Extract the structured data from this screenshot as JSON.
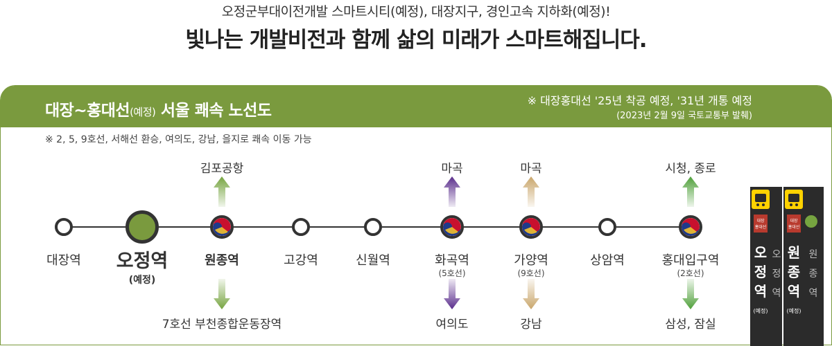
{
  "header": {
    "line1": "오정군부대이전개발 스마트시티(예정), 대장지구, 경인고속 지하화(예정)!",
    "line2": "빛나는 개발비전과 함께 삶의 미래가 스마트해집니다."
  },
  "route_map": {
    "title_main": "대장~홍대선",
    "title_paren": "(예정)",
    "title_rest": " 서울 쾌속 노선도",
    "schedule_note": "※ 대장홍대선 '25년 착공 예정, '31년 개통 예정",
    "source_note": "(2023년 2월 9일 국토교통부 발췌)",
    "transfer_note": "※ 2, 5, 9호선, 서해선 환승, 여의도, 강남, 을지로 쾌속 이동 가능",
    "line_color": "#333333",
    "accent_color": "#7a9a3e",
    "stations": [
      {
        "name": "대장역",
        "sub": "",
        "type": "normal"
      },
      {
        "name": "오정역",
        "sub": "(예정)",
        "type": "highlight"
      },
      {
        "name": "원종역",
        "sub": "",
        "type": "transfer"
      },
      {
        "name": "고강역",
        "sub": "",
        "type": "normal"
      },
      {
        "name": "신월역",
        "sub": "",
        "type": "normal"
      },
      {
        "name": "화곡역",
        "sub": "(5호선)",
        "type": "transfer"
      },
      {
        "name": "가양역",
        "sub": "(9호선)",
        "type": "transfer"
      },
      {
        "name": "상암역",
        "sub": "",
        "type": "normal"
      },
      {
        "name": "홍대입구역",
        "sub": "(2호선)",
        "type": "transfer"
      }
    ],
    "connections": [
      {
        "station": "원종역",
        "up": "김포공항",
        "down": "7호선 부천종합운동장역",
        "color": "#76a440"
      },
      {
        "station": "화곡역",
        "up": "마곡",
        "down": "여의도",
        "color": "#5a2d8c"
      },
      {
        "station": "가양역",
        "up": "마곡",
        "down": "강남",
        "color": "#c9a66b"
      },
      {
        "station": "홍대입구역",
        "up": "시청, 종로",
        "down": "삼성, 잠실",
        "color": "#4fa03a"
      }
    ]
  },
  "signs": [
    {
      "station": "오정역",
      "line_badge": "대장\n홍대선",
      "sub": "(예정)",
      "side": "오정역"
    },
    {
      "station": "원종역",
      "line_badge": "대장\n홍대선",
      "sub": "(예정)",
      "side": "원종역"
    }
  ]
}
